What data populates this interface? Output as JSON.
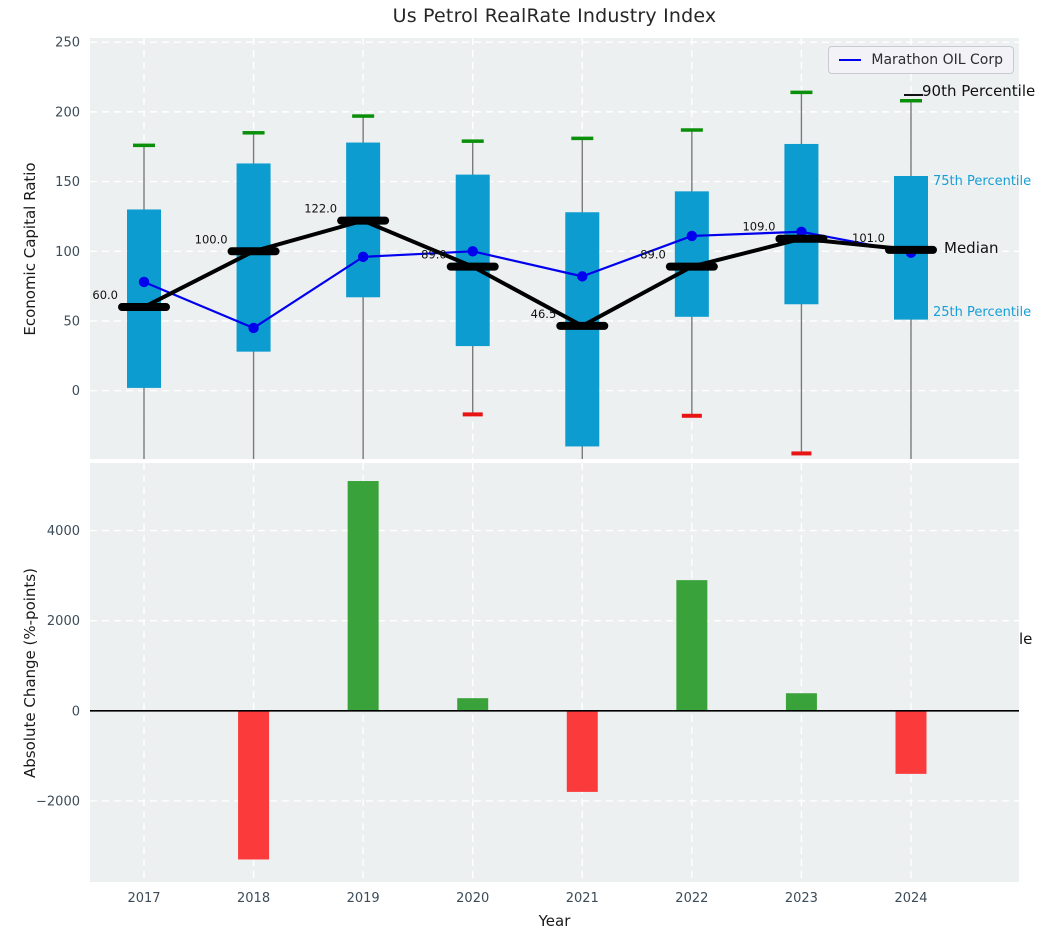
{
  "title": "Us Petrol RealRate Industry Index",
  "axes": {
    "top": {
      "ylabel": "Economic Capital Ratio"
    },
    "bottom": {
      "ylabel": "Absolute Change (%-points)",
      "xlabel": "Year"
    }
  },
  "legend": {
    "label": "Marathon OIL Corp"
  },
  "right_labels": {
    "p90": "90th Percentile",
    "p75": "75th Percentile",
    "median": "Median",
    "p25": "25th Percentile",
    "clipped_fragment": "le"
  },
  "colors": {
    "plot_bg": "#edf0f1",
    "grid": "#ffffff",
    "tick_label": "#3c4c59",
    "box_fill": "#0d9ccf",
    "percentile_label": "#169fd6",
    "green_cap": "#0a8f0a",
    "red_cap": "#e81414",
    "whisker": "#7a7a7a",
    "median_black": "#000000",
    "marathon_blue": "#0000ee",
    "bar_positive": "#3aa23a",
    "bar_negative": "#fb3b3b"
  },
  "chart_data": [
    {
      "type": "box",
      "title": "Us Petrol RealRate Industry Index",
      "ylabel": "Economic Capital Ratio",
      "ylim": [
        -49,
        253
      ],
      "yticks": [
        0,
        50,
        100,
        150,
        200,
        250
      ],
      "grid": true,
      "legend_position": "upper right",
      "categories": [
        "2017",
        "2018",
        "2019",
        "2020",
        "2021",
        "2022",
        "2023",
        "2024"
      ],
      "p90": [
        176,
        185,
        197,
        179,
        181,
        187,
        214,
        208
      ],
      "q75": [
        130,
        163,
        178,
        155,
        128,
        143,
        177,
        154
      ],
      "median": [
        60.0,
        100.0,
        122.0,
        89.0,
        46.5,
        89.0,
        109.0,
        101.0
      ],
      "median_labels": [
        "60.0",
        "100.0",
        "122.0",
        "89.0",
        "46.5",
        "89.0",
        "109.0",
        "101.0"
      ],
      "q25": [
        2,
        28,
        67,
        32,
        -40,
        53,
        62,
        51
      ],
      "p10": [
        null,
        null,
        null,
        -17,
        null,
        -18,
        -45,
        null
      ],
      "series": [
        {
          "name": "Marathon OIL Corp",
          "values": [
            78,
            45,
            96,
            100,
            82,
            111,
            114,
            99
          ]
        }
      ]
    },
    {
      "type": "bar",
      "ylabel": "Absolute Change (%-points)",
      "xlabel": "Year",
      "ylim": [
        -3800,
        5500
      ],
      "yticks": [
        -2000,
        0,
        2000,
        4000
      ],
      "grid": true,
      "categories": [
        "2017",
        "2018",
        "2019",
        "2020",
        "2021",
        "2022",
        "2023",
        "2024"
      ],
      "values": [
        0,
        -3300,
        5100,
        280,
        -1800,
        2900,
        390,
        -1400
      ]
    }
  ]
}
